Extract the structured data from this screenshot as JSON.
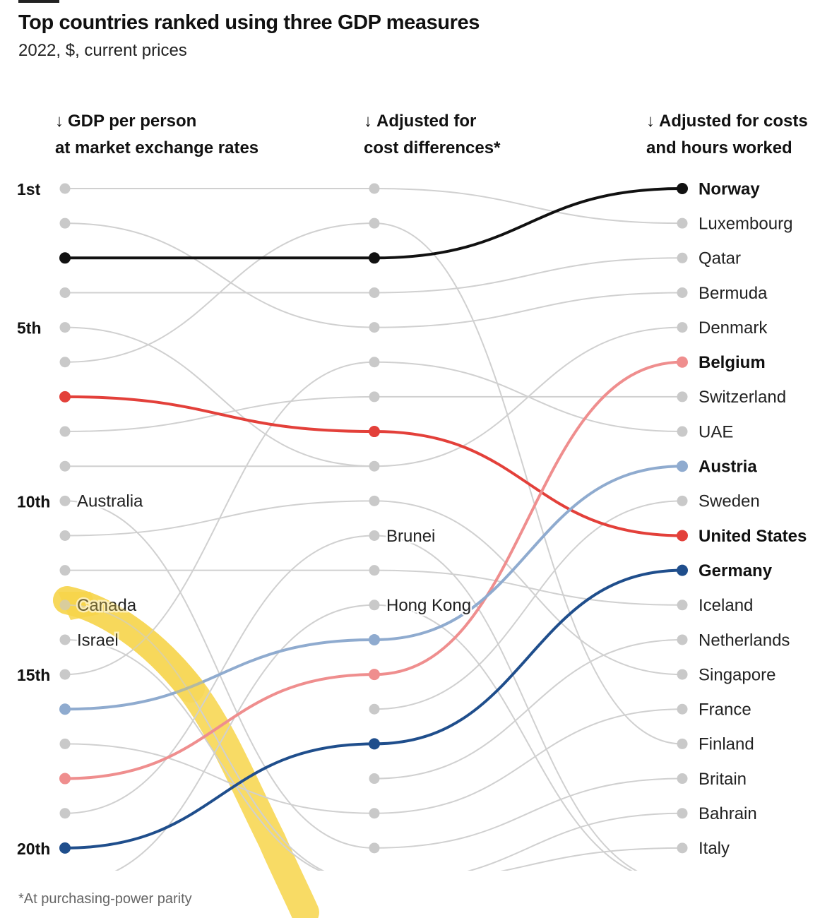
{
  "title": "Top countries ranked using three GDP measures",
  "subtitle": "2022, $, current prices",
  "footnote": "*At purchasing-power parity",
  "columns": [
    {
      "line1": "GDP per person",
      "line2": "at market exchange rates"
    },
    {
      "line1": "Adjusted for",
      "line2": "cost differences*"
    },
    {
      "line1": "Adjusted for costs",
      "line2": "and hours worked"
    }
  ],
  "arrow_glyph": "↓",
  "chart_data": {
    "type": "bump",
    "rank_labels": [
      {
        "rank": 1,
        "label": "1st"
      },
      {
        "rank": 5,
        "label": "5th"
      },
      {
        "rank": 10,
        "label": "10th"
      },
      {
        "rank": 15,
        "label": "15th"
      },
      {
        "rank": 20,
        "label": "20th"
      }
    ],
    "final_ranking": [
      "Norway",
      "Luxembourg",
      "Qatar",
      "Bermuda",
      "Denmark",
      "Belgium",
      "Switzerland",
      "UAE",
      "Austria",
      "Sweden",
      "United States",
      "Germany",
      "Iceland",
      "Netherlands",
      "Singapore",
      "France",
      "Finland",
      "Britain",
      "Bahrain",
      "Italy"
    ],
    "highlighted": [
      {
        "name": "Norway",
        "color": "#111111",
        "ranks": [
          3,
          3,
          1
        ]
      },
      {
        "name": "United States",
        "color": "#e3403a",
        "ranks": [
          7,
          8,
          11
        ]
      },
      {
        "name": "Belgium",
        "color": "#ef8e8e",
        "ranks": [
          18,
          15,
          6
        ]
      },
      {
        "name": "Austria",
        "color": "#8fabcf",
        "ranks": [
          16,
          14,
          9
        ]
      },
      {
        "name": "Germany",
        "color": "#1f4e8c",
        "ranks": [
          20,
          17,
          12
        ]
      }
    ],
    "inline_labels": [
      {
        "column": 0,
        "rank": 10,
        "text": "Australia"
      },
      {
        "column": 0,
        "rank": 13,
        "text": "Canada"
      },
      {
        "column": 0,
        "rank": 14,
        "text": "Israel"
      },
      {
        "column": 1,
        "rank": 11,
        "text": "Brunei"
      },
      {
        "column": 1,
        "rank": 13,
        "text": "Hong Kong"
      }
    ],
    "grey_links": [
      {
        "from": [
          0,
          1
        ],
        "to": [
          1,
          1
        ]
      },
      {
        "from": [
          0,
          2
        ],
        "to": [
          1,
          5
        ]
      },
      {
        "from": [
          0,
          4
        ],
        "to": [
          1,
          4
        ]
      },
      {
        "from": [
          0,
          5
        ],
        "to": [
          1,
          9
        ]
      },
      {
        "from": [
          0,
          6
        ],
        "to": [
          1,
          2
        ]
      },
      {
        "from": [
          0,
          8
        ],
        "to": [
          1,
          7
        ]
      },
      {
        "from": [
          0,
          9
        ],
        "to": [
          1,
          9
        ]
      },
      {
        "from": [
          0,
          10
        ],
        "to": [
          1,
          20
        ]
      },
      {
        "from": [
          0,
          11
        ],
        "to": [
          1,
          10
        ]
      },
      {
        "from": [
          0,
          12
        ],
        "to": [
          1,
          12
        ]
      },
      {
        "from": [
          0,
          13
        ],
        "to": [
          1,
          21
        ]
      },
      {
        "from": [
          0,
          14
        ],
        "to": [
          1,
          21
        ]
      },
      {
        "from": [
          0,
          15
        ],
        "to": [
          1,
          6
        ]
      },
      {
        "from": [
          0,
          17
        ],
        "to": [
          1,
          19
        ]
      },
      {
        "from": [
          0,
          19
        ],
        "to": [
          1,
          11
        ]
      },
      {
        "from": [
          0,
          21
        ],
        "to": [
          1,
          13
        ]
      },
      {
        "from": [
          1,
          1
        ],
        "to": [
          2,
          2
        ]
      },
      {
        "from": [
          1,
          2
        ],
        "to": [
          2,
          17
        ]
      },
      {
        "from": [
          1,
          4
        ],
        "to": [
          2,
          3
        ]
      },
      {
        "from": [
          1,
          5
        ],
        "to": [
          2,
          4
        ]
      },
      {
        "from": [
          1,
          6
        ],
        "to": [
          2,
          8
        ]
      },
      {
        "from": [
          1,
          7
        ],
        "to": [
          2,
          7
        ]
      },
      {
        "from": [
          1,
          9
        ],
        "to": [
          2,
          5
        ]
      },
      {
        "from": [
          1,
          10
        ],
        "to": [
          2,
          15
        ]
      },
      {
        "from": [
          1,
          11
        ],
        "to": [
          2,
          21
        ]
      },
      {
        "from": [
          1,
          12
        ],
        "to": [
          2,
          13
        ]
      },
      {
        "from": [
          1,
          13
        ],
        "to": [
          2,
          21
        ]
      },
      {
        "from": [
          1,
          16
        ],
        "to": [
          2,
          10
        ]
      },
      {
        "from": [
          1,
          18
        ],
        "to": [
          2,
          14
        ]
      },
      {
        "from": [
          1,
          19
        ],
        "to": [
          2,
          16
        ]
      },
      {
        "from": [
          1,
          20
        ],
        "to": [
          2,
          18
        ]
      },
      {
        "from": [
          1,
          21
        ],
        "to": [
          2,
          19
        ]
      },
      {
        "from": [
          1,
          21
        ],
        "to": [
          2,
          20
        ]
      }
    ],
    "highlighter_marker": {
      "color": "#f7d54a",
      "opacity": 0.85
    }
  }
}
